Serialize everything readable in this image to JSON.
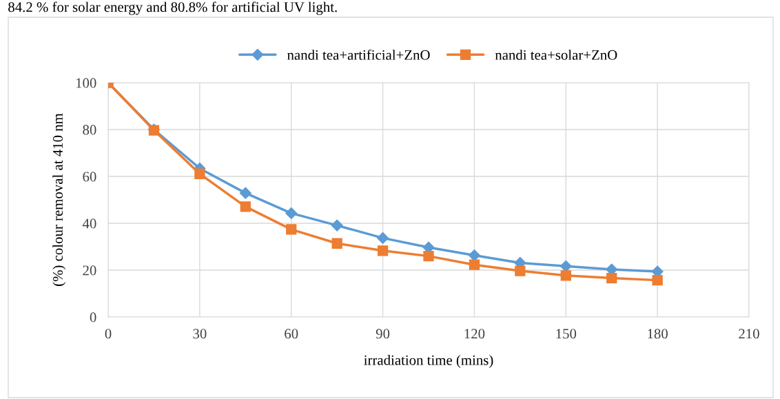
{
  "chart_data": {
    "type": "line",
    "annotations": [
      "84.2 % for solar energy and 80.8% for artificial UV light."
    ],
    "xlabel": "irradiation time (mins)",
    "ylabel": "(%) colour removal at 410 nm",
    "x": [
      0,
      15,
      30,
      45,
      60,
      75,
      90,
      105,
      120,
      135,
      150,
      165,
      180
    ],
    "series": [
      {
        "name": "nandi tea+artificial+ZnO",
        "color": "#5b9bd5",
        "marker": "diamond",
        "values": [
          100,
          80,
          63.4,
          52.9,
          44.3,
          39.1,
          33.7,
          29.7,
          26.3,
          23.1,
          21.7,
          20.3,
          19.4
        ]
      },
      {
        "name": "nandi tea+solar+ZnO",
        "color": "#ed7d31",
        "marker": "square",
        "values": [
          100,
          79.7,
          61.1,
          47.1,
          37.4,
          31.4,
          28.3,
          26,
          22.3,
          19.7,
          17.7,
          16.6,
          15.7
        ]
      }
    ],
    "xlim": [
      0,
      210
    ],
    "xticks": [
      0,
      30,
      60,
      90,
      120,
      150,
      180,
      210
    ],
    "ylim": [
      0,
      100
    ],
    "yticks": [
      0,
      20,
      40,
      60,
      80,
      100
    ],
    "grid": true,
    "legend": "top",
    "line_style": "solid"
  }
}
